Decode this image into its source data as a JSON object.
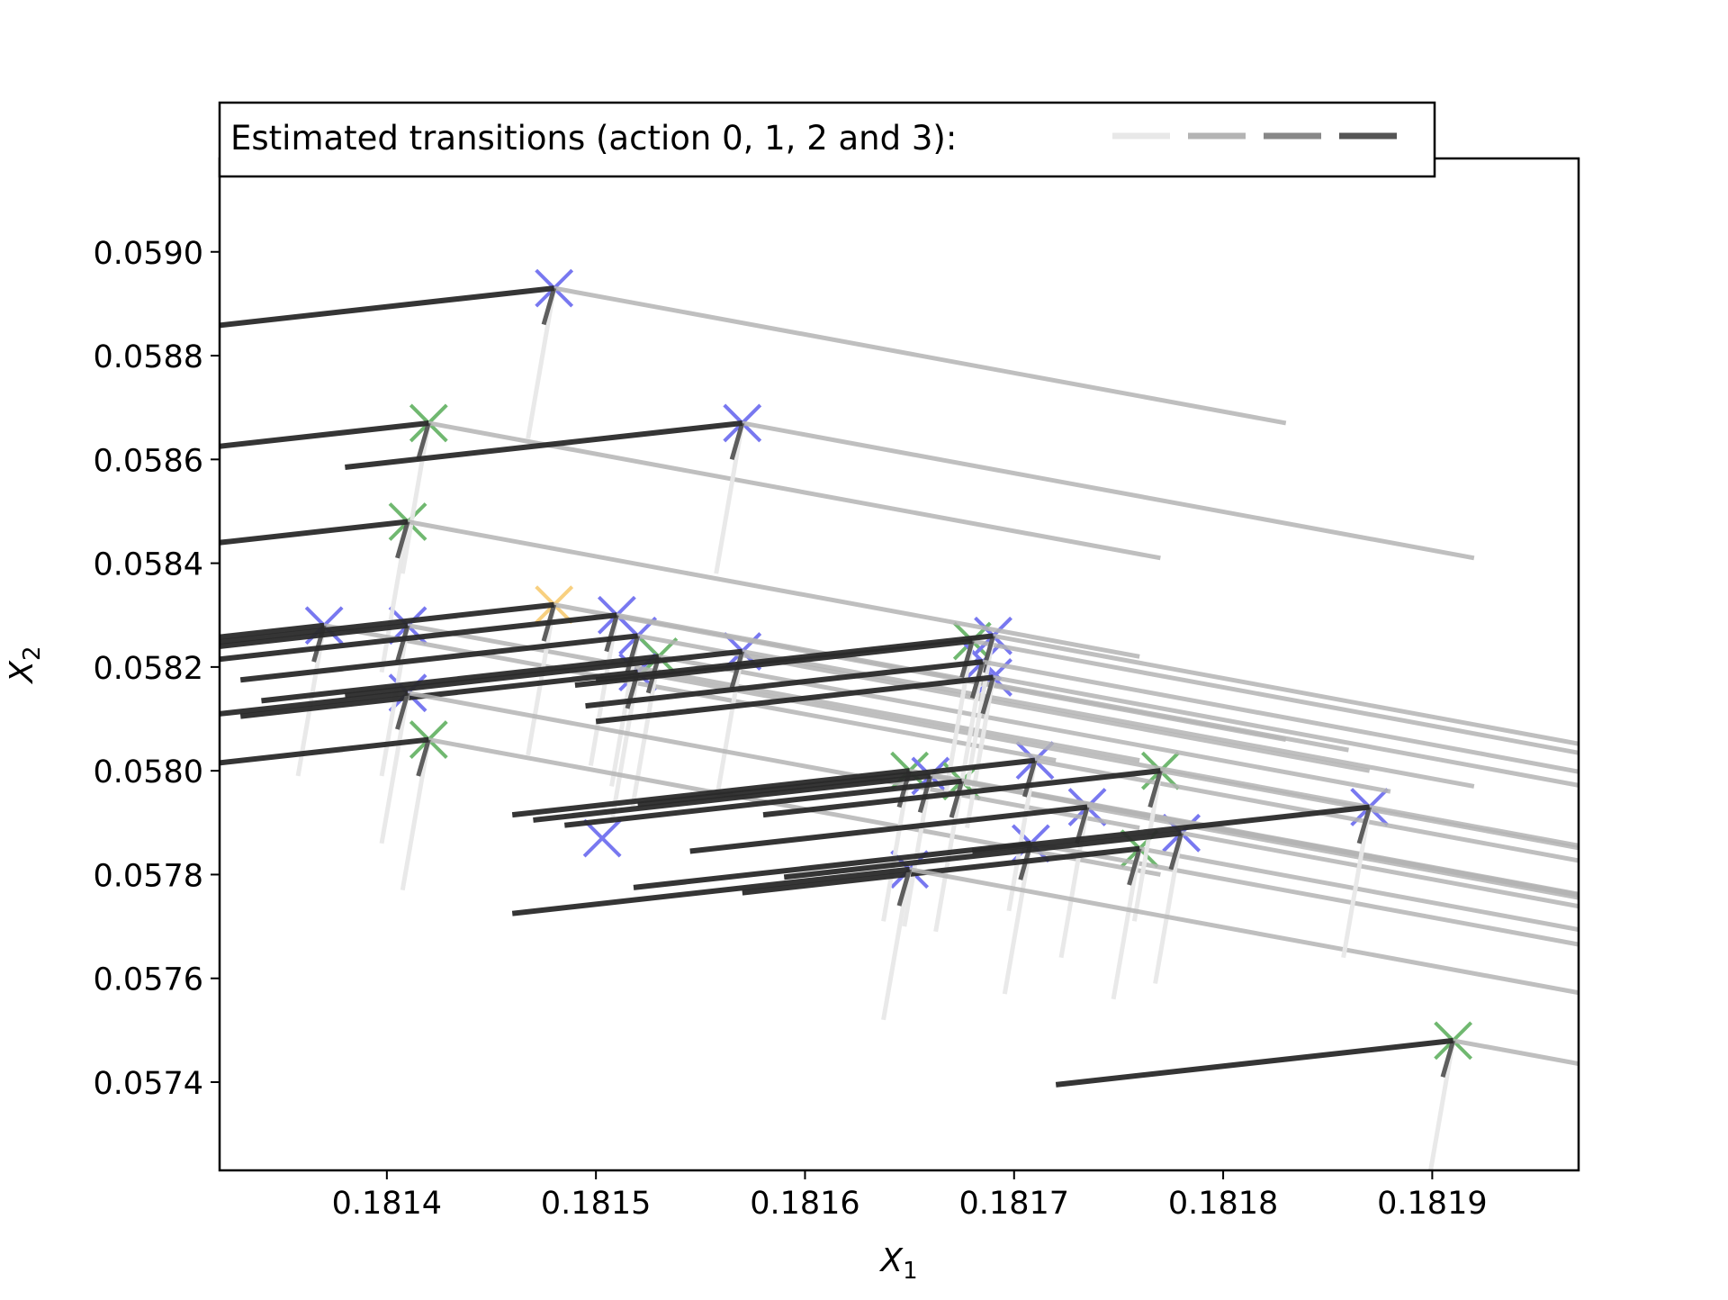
{
  "chart_data": {
    "type": "scatter",
    "title": "",
    "xlabel": "X",
    "xlabel_sub": "1",
    "ylabel": "X",
    "ylabel_sub": "2",
    "xlim": [
      0.18132,
      0.18197
    ],
    "ylim": [
      0.05723,
      0.05918
    ],
    "x_ticks": [
      0.1814,
      0.1815,
      0.1816,
      0.1817,
      0.1818,
      0.1819
    ],
    "x_tick_labels": [
      "0.1814",
      "0.1815",
      "0.1816",
      "0.1817",
      "0.1818",
      "0.1819"
    ],
    "y_ticks": [
      0.0574,
      0.0576,
      0.0578,
      0.058,
      0.0582,
      0.0584,
      0.0586,
      0.0588,
      0.059
    ],
    "y_tick_labels": [
      "0.0574",
      "0.0576",
      "0.0578",
      "0.0580",
      "0.0582",
      "0.0584",
      "0.0586",
      "0.0588",
      "0.0590"
    ],
    "grid": false,
    "legend": {
      "placement": "top-left",
      "label": "Estimated transitions (action 0, 1, 2 and 3):",
      "actions": [
        "0",
        "1",
        "2",
        "3"
      ],
      "action_colors": [
        "#e8e8e8",
        "#b4b4b4",
        "#888888",
        "#555555"
      ]
    },
    "state_colors": {
      "blue": "#7878f0",
      "green": "#70b870",
      "orange": "#f8d080"
    },
    "transition_offsets": [
      {
        "action": "0",
        "dx": -1.25e-05,
        "dy": -0.00029
      },
      {
        "action": "1",
        "dx": 0.00035,
        "dy": -0.00026
      },
      {
        "action": "2",
        "dx": -5e-06,
        "dy": -7e-05
      },
      {
        "action": "3",
        "dx": -0.00019,
        "dy": -8.5e-05
      }
    ],
    "states": [
      {
        "x": 0.18148,
        "y": 0.05893,
        "color": "blue"
      },
      {
        "x": 0.18142,
        "y": 0.05867,
        "color": "green"
      },
      {
        "x": 0.18157,
        "y": 0.05867,
        "color": "blue"
      },
      {
        "x": 0.18141,
        "y": 0.05848,
        "color": "green"
      },
      {
        "x": 0.18137,
        "y": 0.05828,
        "color": "blue"
      },
      {
        "x": 0.18141,
        "y": 0.05828,
        "color": "blue"
      },
      {
        "x": 0.18148,
        "y": 0.05832,
        "color": "orange"
      },
      {
        "x": 0.18151,
        "y": 0.0583,
        "color": "blue"
      },
      {
        "x": 0.18152,
        "y": 0.05826,
        "color": "blue"
      },
      {
        "x": 0.18153,
        "y": 0.05822,
        "color": "green"
      },
      {
        "x": 0.18152,
        "y": 0.05819,
        "color": "blue"
      },
      {
        "x": 0.18157,
        "y": 0.05823,
        "color": "blue"
      },
      {
        "x": 0.18141,
        "y": 0.05815,
        "color": "blue"
      },
      {
        "x": 0.18142,
        "y": 0.05806,
        "color": "green"
      },
      {
        "x": 0.181503,
        "y": 0.05787,
        "color": "blue"
      },
      {
        "x": 0.18168,
        "y": 0.05825,
        "color": "green"
      },
      {
        "x": 0.18169,
        "y": 0.05826,
        "color": "blue"
      },
      {
        "x": 0.181685,
        "y": 0.05821,
        "color": "blue"
      },
      {
        "x": 0.18169,
        "y": 0.05818,
        "color": "blue"
      },
      {
        "x": 0.18165,
        "y": 0.058,
        "color": "green"
      },
      {
        "x": 0.18166,
        "y": 0.05799,
        "color": "blue"
      },
      {
        "x": 0.181675,
        "y": 0.05798,
        "color": "green"
      },
      {
        "x": 0.18171,
        "y": 0.05802,
        "color": "blue"
      },
      {
        "x": 0.181735,
        "y": 0.05793,
        "color": "blue"
      },
      {
        "x": 0.181708,
        "y": 0.05786,
        "color": "blue"
      },
      {
        "x": 0.18176,
        "y": 0.05785,
        "color": "green"
      },
      {
        "x": 0.18177,
        "y": 0.058,
        "color": "green"
      },
      {
        "x": 0.18178,
        "y": 0.05788,
        "color": "blue"
      },
      {
        "x": 0.18165,
        "y": 0.05781,
        "color": "blue"
      },
      {
        "x": 0.18187,
        "y": 0.05793,
        "color": "blue"
      },
      {
        "x": 0.18191,
        "y": 0.05748,
        "color": "green"
      }
    ],
    "states_without_transitions": [
      14
    ]
  }
}
